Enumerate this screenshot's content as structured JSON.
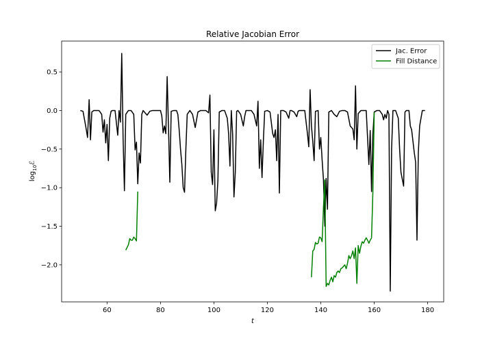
{
  "chart_data": {
    "type": "line",
    "title": "Relative Jacobian Error",
    "xlabel": "t",
    "ylabel_base": "log",
    "ylabel_sub": "10",
    "ylabel_var": "ℰ",
    "xlim": [
      43,
      186
    ],
    "ylim": [
      -2.48,
      0.9
    ],
    "xticks": [
      60,
      80,
      100,
      120,
      140,
      160,
      180
    ],
    "xtick_labels": [
      "60",
      "80",
      "100",
      "120",
      "140",
      "160",
      "180"
    ],
    "yticks": [
      0.5,
      0.0,
      -0.5,
      -1.0,
      -1.5,
      -2.0
    ],
    "ytick_labels": [
      "0.5",
      "0.0",
      "−0.5",
      "−1.0",
      "−1.5",
      "−2.0"
    ],
    "legend_position": "top-right",
    "grid": false,
    "series": [
      {
        "name": "Jac. Error",
        "color": "#000000",
        "points": [
          [
            50,
            0.0
          ],
          [
            51,
            -0.01
          ],
          [
            52,
            -0.2
          ],
          [
            52.7,
            -0.35
          ],
          [
            53.3,
            0.14
          ],
          [
            53.8,
            -0.38
          ],
          [
            54.3,
            -0.02
          ],
          [
            55,
            0.0
          ],
          [
            56,
            0.0
          ],
          [
            57,
            0.0
          ],
          [
            58,
            -0.05
          ],
          [
            58.5,
            -0.28
          ],
          [
            59,
            -0.12
          ],
          [
            59.5,
            -0.42
          ],
          [
            60,
            -0.18
          ],
          [
            60.5,
            -0.65
          ],
          [
            61,
            -0.1
          ],
          [
            61.5,
            -0.01
          ],
          [
            62,
            0.0
          ],
          [
            63,
            0.0
          ],
          [
            64,
            -0.32
          ],
          [
            64.5,
            0.0
          ],
          [
            65,
            -0.15
          ],
          [
            65.5,
            0.74
          ],
          [
            66,
            -0.35
          ],
          [
            66.5,
            -1.04
          ],
          [
            67,
            -0.05
          ],
          [
            68,
            0.0
          ],
          [
            69,
            0.0
          ],
          [
            70,
            -0.05
          ],
          [
            70.5,
            -0.51
          ],
          [
            71,
            -0.41
          ],
          [
            71.5,
            -0.95
          ],
          [
            72,
            -0.55
          ],
          [
            72.5,
            -0.68
          ],
          [
            73,
            -0.05
          ],
          [
            73.5,
            0.0
          ],
          [
            74,
            -0.02
          ],
          [
            75,
            -0.06
          ],
          [
            76,
            -0.01
          ],
          [
            77,
            0.0
          ],
          [
            78,
            0.0
          ],
          [
            79,
            0.0
          ],
          [
            80,
            0.0
          ],
          [
            80.5,
            -0.07
          ],
          [
            81,
            -0.29
          ],
          [
            81.5,
            -0.2
          ],
          [
            82,
            -0.3
          ],
          [
            82.5,
            0.44
          ],
          [
            83,
            -0.22
          ],
          [
            83.5,
            -0.93
          ],
          [
            84,
            -0.01
          ],
          [
            85,
            0.0
          ],
          [
            86,
            0.0
          ],
          [
            86.5,
            -0.05
          ],
          [
            87,
            -0.25
          ],
          [
            87.5,
            -0.5
          ],
          [
            88,
            -0.7
          ],
          [
            88.5,
            -1.0
          ],
          [
            89,
            -1.06
          ],
          [
            89.5,
            -0.5
          ],
          [
            90,
            -0.05
          ],
          [
            91,
            0.0
          ],
          [
            92,
            -0.05
          ],
          [
            93,
            -0.22
          ],
          [
            93.5,
            -0.12
          ],
          [
            94,
            -0.02
          ],
          [
            95,
            0.0
          ],
          [
            96,
            0.0
          ],
          [
            97,
            0.0
          ],
          [
            98,
            -0.03
          ],
          [
            98.5,
            0.2
          ],
          [
            99,
            -0.8
          ],
          [
            99.5,
            -0.96
          ],
          [
            100,
            -0.25
          ],
          [
            100.5,
            -1.3
          ],
          [
            101,
            -1.2
          ],
          [
            101.5,
            -0.9
          ],
          [
            102,
            -0.02
          ],
          [
            103,
            0.0
          ],
          [
            104,
            0.0
          ],
          [
            105,
            -0.1
          ],
          [
            105.5,
            -0.3
          ],
          [
            106,
            -0.72
          ],
          [
            106.5,
            0.0
          ],
          [
            107,
            -0.3
          ],
          [
            107.5,
            -1.12
          ],
          [
            108,
            -0.8
          ],
          [
            108.5,
            -0.01
          ],
          [
            109,
            0.0
          ],
          [
            110,
            -0.05
          ],
          [
            111,
            -0.2
          ],
          [
            111.5,
            -0.08
          ],
          [
            112,
            0.0
          ],
          [
            113,
            0.0
          ],
          [
            114,
            0.0
          ],
          [
            115,
            -0.05
          ],
          [
            116,
            -0.2
          ],
          [
            116.5,
            0.12
          ],
          [
            117,
            -0.75
          ],
          [
            117.5,
            -0.38
          ],
          [
            118,
            -0.87
          ],
          [
            118.5,
            -0.4
          ],
          [
            119,
            -0.01
          ],
          [
            120,
            0.0
          ],
          [
            121,
            -0.02
          ],
          [
            122,
            -0.3
          ],
          [
            122.5,
            -0.35
          ],
          [
            123,
            -0.25
          ],
          [
            123.5,
            -0.65
          ],
          [
            124,
            -0.05
          ],
          [
            124.5,
            -1.07
          ],
          [
            125,
            0.0
          ],
          [
            126,
            0.0
          ],
          [
            127,
            -0.02
          ],
          [
            128,
            -0.1
          ],
          [
            128.5,
            0.0
          ],
          [
            129,
            0.0
          ],
          [
            130,
            -0.02
          ],
          [
            131,
            -0.08
          ],
          [
            131.5,
            -0.01
          ],
          [
            132,
            0.0
          ],
          [
            133,
            0.0
          ],
          [
            134,
            0.0
          ],
          [
            135,
            -0.3
          ],
          [
            135.5,
            -0.47
          ],
          [
            136,
            0.27
          ],
          [
            136.5,
            -0.2
          ],
          [
            137,
            -0.4
          ],
          [
            137.5,
            -0.65
          ],
          [
            138,
            -0.01
          ],
          [
            139,
            0.0
          ],
          [
            139.5,
            -0.5
          ],
          [
            140,
            -0.35
          ],
          [
            140.5,
            -0.64
          ],
          [
            141,
            -0.9
          ],
          [
            141.5,
            -1.5
          ],
          [
            142,
            -0.88
          ],
          [
            142.5,
            -1.28
          ],
          [
            143,
            -0.02
          ],
          [
            144,
            0.0
          ],
          [
            145,
            -0.05
          ],
          [
            146,
            -0.08
          ],
          [
            147,
            -0.01
          ],
          [
            148,
            0.0
          ],
          [
            149,
            0.0
          ],
          [
            150,
            -0.02
          ],
          [
            151,
            -0.2
          ],
          [
            152,
            -0.24
          ],
          [
            152.5,
            -0.38
          ],
          [
            153,
            0.32
          ],
          [
            153.5,
            -0.5
          ],
          [
            154,
            -0.04
          ],
          [
            155,
            0.0
          ],
          [
            156,
            0.0
          ],
          [
            157,
            0.0
          ],
          [
            158,
            -0.7
          ],
          [
            158.5,
            -0.26
          ],
          [
            159,
            -1.05
          ],
          [
            159.5,
            -0.3
          ],
          [
            160,
            -0.02
          ],
          [
            161,
            0.0
          ],
          [
            162,
            0.0
          ],
          [
            163,
            -0.05
          ],
          [
            163.5,
            -0.12
          ],
          [
            164,
            -0.05
          ],
          [
            164.5,
            -0.1
          ],
          [
            165,
            0.0
          ],
          [
            165.5,
            -0.05
          ],
          [
            166,
            -2.34
          ],
          [
            166.5,
            -0.5
          ],
          [
            167,
            0.0
          ],
          [
            168,
            0.0
          ],
          [
            169,
            -0.1
          ],
          [
            169.5,
            -0.5
          ],
          [
            170,
            -0.8
          ],
          [
            171,
            -0.98
          ],
          [
            171.5,
            -0.02
          ],
          [
            172,
            0.0
          ],
          [
            173,
            0.0
          ],
          [
            173.5,
            -0.2
          ],
          [
            174,
            -0.25
          ],
          [
            175,
            -0.55
          ],
          [
            175.5,
            -0.67
          ],
          [
            176,
            -1.68
          ],
          [
            176.5,
            -0.55
          ],
          [
            177,
            -0.2
          ],
          [
            178,
            0.0
          ],
          [
            179,
            0.0
          ]
        ]
      },
      {
        "name": "Fill Distance",
        "color": "#008000",
        "points": [
          [
            67,
            -1.81
          ],
          [
            68,
            -1.74
          ],
          [
            68.5,
            -1.66
          ],
          [
            69,
            -1.68
          ],
          [
            69.5,
            -1.68
          ],
          [
            70,
            -1.64
          ],
          [
            70.5,
            -1.66
          ],
          [
            71,
            -1.69
          ],
          [
            71.5,
            -1.05
          ]
        ],
        "points_2": [
          [
            136.5,
            -2.16
          ],
          [
            137,
            -1.82
          ],
          [
            137.5,
            -1.8
          ],
          [
            138,
            -1.71
          ],
          [
            138.5,
            -1.73
          ],
          [
            139,
            -1.72
          ],
          [
            139.5,
            -1.64
          ],
          [
            140,
            -1.65
          ],
          [
            140.5,
            -1.7
          ],
          [
            141,
            -1.25
          ],
          [
            141.5,
            -0.9
          ],
          [
            142,
            -2.28
          ],
          [
            142.5,
            -2.24
          ],
          [
            143,
            -2.26
          ],
          [
            143.5,
            -2.2
          ],
          [
            144,
            -2.16
          ],
          [
            144.5,
            -2.22
          ],
          [
            145,
            -2.14
          ],
          [
            145.5,
            -2.16
          ],
          [
            146,
            -2.1
          ],
          [
            146.5,
            -2.08
          ],
          [
            147,
            -2.1
          ],
          [
            147.5,
            -2.05
          ],
          [
            148,
            -2.04
          ],
          [
            148.5,
            -2.02
          ],
          [
            149,
            -2.0
          ],
          [
            149.5,
            -2.05
          ],
          [
            150,
            -1.98
          ],
          [
            150.5,
            -1.88
          ],
          [
            151,
            -1.92
          ],
          [
            151.5,
            -1.88
          ],
          [
            152,
            -1.82
          ],
          [
            152.5,
            -1.92
          ],
          [
            153,
            -1.78
          ],
          [
            153.5,
            -2.24
          ],
          [
            154,
            -1.75
          ],
          [
            154.5,
            -1.85
          ],
          [
            155,
            -1.76
          ],
          [
            155.5,
            -1.7
          ],
          [
            156,
            -1.72
          ],
          [
            156.5,
            -1.68
          ],
          [
            157,
            -1.65
          ],
          [
            157.5,
            -1.68
          ],
          [
            158,
            -1.72
          ],
          [
            158.5,
            -1.68
          ],
          [
            159,
            -1.65
          ],
          [
            159.5,
            -1.05
          ],
          [
            160,
            -0.02
          ]
        ]
      }
    ]
  }
}
